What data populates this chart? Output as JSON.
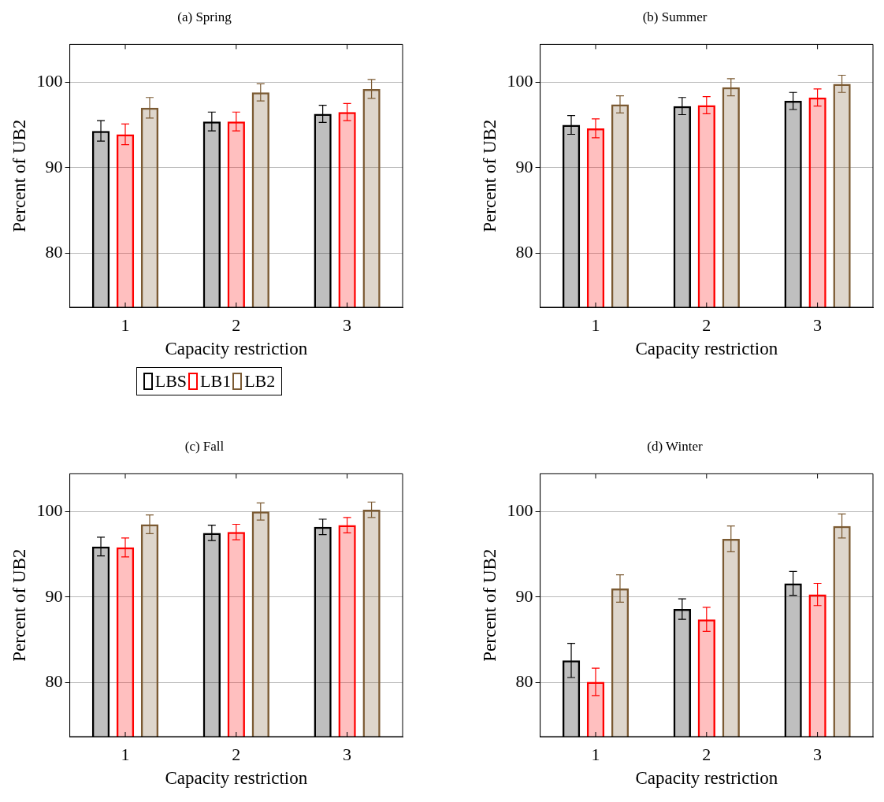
{
  "chart_data": [
    {
      "type": "bar",
      "title": "(a) Spring",
      "xlabel": "Capacity restriction",
      "ylabel": "Percent of UB2",
      "categories": [
        "1",
        "2",
        "3"
      ],
      "ylim": [
        73.7,
        104.4
      ],
      "yticks": [
        80,
        90,
        100
      ],
      "grid": "y",
      "legend": "bottom",
      "series": [
        {
          "name": "LBS",
          "color": "#000000",
          "values": [
            94.3,
            95.4,
            96.3
          ],
          "errors": [
            1.2,
            1.1,
            1.0
          ]
        },
        {
          "name": "LB1",
          "color": "#ff0000",
          "values": [
            93.9,
            95.4,
            96.5
          ],
          "errors": [
            1.2,
            1.1,
            1.0
          ]
        },
        {
          "name": "LB2",
          "color": "#7b5a32",
          "values": [
            97.0,
            98.8,
            99.2
          ],
          "errors": [
            1.2,
            1.0,
            1.1
          ]
        }
      ]
    },
    {
      "type": "bar",
      "title": "(b) Summer",
      "xlabel": "Capacity restriction",
      "ylabel": "Percent of UB2",
      "categories": [
        "1",
        "2",
        "3"
      ],
      "ylim": [
        73.7,
        104.4
      ],
      "yticks": [
        80,
        90,
        100
      ],
      "grid": "y",
      "series": [
        {
          "color": "#000000",
          "values": [
            95.0,
            97.2,
            97.8
          ],
          "errors": [
            1.1,
            1.0,
            1.0
          ]
        },
        {
          "color": "#ff0000",
          "values": [
            94.6,
            97.3,
            98.2
          ],
          "errors": [
            1.1,
            1.0,
            1.0
          ]
        },
        {
          "color": "#7b5a32",
          "values": [
            97.4,
            99.4,
            99.8
          ],
          "errors": [
            1.0,
            1.0,
            1.0
          ]
        }
      ]
    },
    {
      "type": "bar",
      "title": "(c) Fall",
      "xlabel": "Capacity restriction",
      "ylabel": "Percent of UB2",
      "categories": [
        "1",
        "2",
        "3"
      ],
      "ylim": [
        73.7,
        104.4
      ],
      "yticks": [
        80,
        90,
        100
      ],
      "grid": "y",
      "series": [
        {
          "color": "#000000",
          "values": [
            95.9,
            97.5,
            98.2
          ],
          "errors": [
            1.1,
            0.9,
            0.9
          ]
        },
        {
          "color": "#ff0000",
          "values": [
            95.8,
            97.6,
            98.4
          ],
          "errors": [
            1.1,
            0.9,
            0.9
          ]
        },
        {
          "color": "#7b5a32",
          "values": [
            98.5,
            100.0,
            100.2
          ],
          "errors": [
            1.1,
            1.0,
            0.9
          ]
        }
      ]
    },
    {
      "type": "bar",
      "title": "(d) Winter",
      "xlabel": "Capacity restriction",
      "ylabel": "Percent of UB2",
      "categories": [
        "1",
        "2",
        "3"
      ],
      "ylim": [
        73.7,
        104.4
      ],
      "yticks": [
        80,
        90,
        100
      ],
      "grid": "y",
      "series": [
        {
          "color": "#000000",
          "values": [
            82.6,
            88.6,
            91.6
          ],
          "errors": [
            2.0,
            1.2,
            1.4
          ]
        },
        {
          "color": "#ff0000",
          "values": [
            80.1,
            87.4,
            90.3
          ],
          "errors": [
            1.6,
            1.4,
            1.3
          ]
        },
        {
          "color": "#7b5a32",
          "values": [
            91.0,
            96.8,
            98.3
          ],
          "errors": [
            1.6,
            1.5,
            1.4
          ]
        }
      ]
    }
  ]
}
